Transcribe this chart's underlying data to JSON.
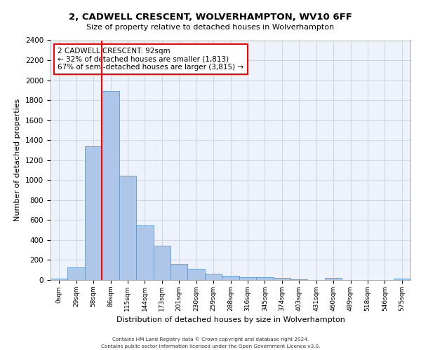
{
  "title_line1": "2, CADWELL CRESCENT, WOLVERHAMPTON, WV10 6FF",
  "title_line2": "Size of property relative to detached houses in Wolverhampton",
  "xlabel": "Distribution of detached houses by size in Wolverhampton",
  "ylabel": "Number of detached properties",
  "categories": [
    "0sqm",
    "29sqm",
    "58sqm",
    "86sqm",
    "115sqm",
    "144sqm",
    "173sqm",
    "201sqm",
    "230sqm",
    "259sqm",
    "288sqm",
    "316sqm",
    "345sqm",
    "374sqm",
    "403sqm",
    "431sqm",
    "460sqm",
    "489sqm",
    "518sqm",
    "546sqm",
    "575sqm"
  ],
  "values": [
    15,
    125,
    1340,
    1890,
    1045,
    545,
    340,
    160,
    110,
    65,
    40,
    30,
    30,
    20,
    5,
    0,
    20,
    0,
    0,
    0,
    15
  ],
  "bar_color": "#aec6e8",
  "bar_edge_color": "#5b9bd5",
  "grid_color": "#d0d8e8",
  "bg_color": "#eef2fa",
  "vline_x_index": 3,
  "annotation_text": "2 CADWELL CRESCENT: 92sqm\n← 32% of detached houses are smaller (1,813)\n67% of semi-detached houses are larger (3,815) →",
  "annotation_box_color": "white",
  "annotation_box_edge": "red",
  "ylim": [
    0,
    2400
  ],
  "yticks": [
    0,
    200,
    400,
    600,
    800,
    1000,
    1200,
    1400,
    1600,
    1800,
    2000,
    2200,
    2400
  ],
  "footer_line1": "Contains HM Land Registry data © Crown copyright and database right 2024.",
  "footer_line2": "Contains public sector information licensed under the Open Government Licence v3.0."
}
